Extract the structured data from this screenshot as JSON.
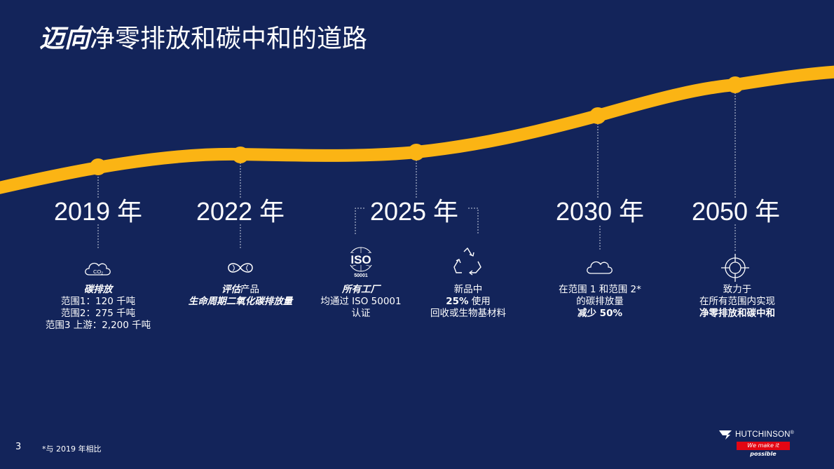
{
  "title": {
    "emphasis": "迈向",
    "rest": "净零排放和碳中和的道路"
  },
  "milestones": [
    {
      "year": "2019 年",
      "icon": "co2-cloud-icon",
      "co2_label": "CO",
      "co2_sub": "2",
      "lines": [
        "碳排放",
        "范围1：120 千吨",
        "范围2：275 千吨",
        "范围3 上游：2,200 千吨"
      ]
    },
    {
      "year": "2022 年",
      "icon": "infinity-leaf-icon",
      "line1_em": "评估",
      "line1_rest": "产品",
      "line2": "生命周期二氧化碳排放量"
    },
    {
      "year": "2025 年",
      "iso_icon": "iso-50001-icon",
      "iso_label": "ISO",
      "iso_num": "50001",
      "factories": [
        "所有工厂",
        "均通过 ISO 50001",
        "认证"
      ],
      "recycle_icon": "recycle-icon",
      "products": {
        "line1": "新品中",
        "line2_bold": "25%",
        "line2_rest": " 使用",
        "line3": "回收或生物基材料"
      }
    },
    {
      "year": "2030 年",
      "icon": "cloud-icon",
      "lines": [
        "在范围 1 和范围 2*",
        "的碳排放量",
        "减少 50%"
      ]
    },
    {
      "year": "2050 年",
      "icon": "target-icon",
      "lines": [
        "致力于",
        "在所有范围内实现",
        "净零排放和碳中和"
      ]
    }
  ],
  "page_number": "3",
  "footnote": "*与 2019 年相比",
  "logo": {
    "name": "HUTCHINSON",
    "reg": "®",
    "tagline_a": "We make it ",
    "tagline_b": "possible"
  },
  "colors": {
    "background": "#13245a",
    "curve": "#fbb414",
    "logo_red": "#e30613"
  }
}
